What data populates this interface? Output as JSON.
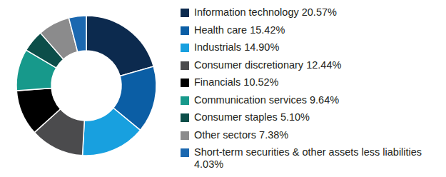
{
  "chart_data": {
    "type": "donut",
    "categories": [
      "Information technology",
      "Health care",
      "Industrials",
      "Consumer discretionary",
      "Financials",
      "Communication services",
      "Consumer staples",
      "Other sectors",
      "Short-term securities & other assets less liabilities"
    ],
    "values": [
      20.57,
      15.42,
      14.9,
      12.44,
      10.52,
      9.64,
      5.1,
      7.38,
      4.03
    ],
    "value_labels": [
      "20.57%",
      "15.42%",
      "14.90%",
      "12.44%",
      "10.52%",
      "9.64%",
      "5.10%",
      "7.38%",
      "4.03%"
    ],
    "colors": [
      "#0c2a4e",
      "#0b5ea5",
      "#18a0df",
      "#4b4b4d",
      "#000000",
      "#17998b",
      "#0c4e49",
      "#8b8b8c",
      "#1b68b0"
    ],
    "legend": "right"
  }
}
